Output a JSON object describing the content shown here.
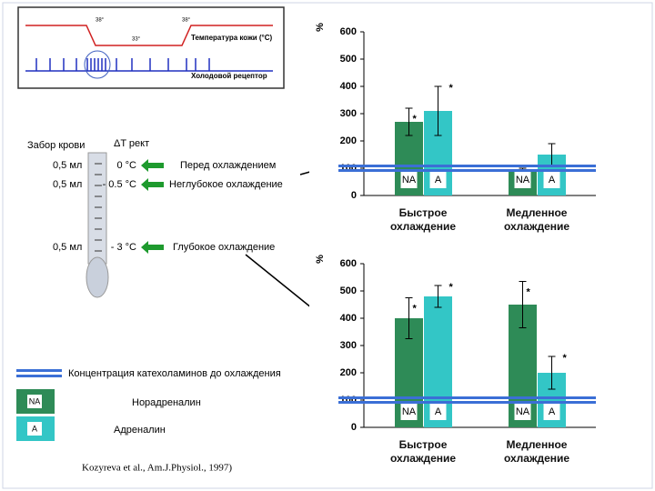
{
  "schematic": {
    "temp_label": "Температура кожи (°C)",
    "receptor_label": "Холодовой рецептор",
    "marks": [
      "38°",
      "33°",
      "38°"
    ]
  },
  "thermometer": {
    "blood_label": "Забор крови",
    "delta_label": "ΔT рект",
    "rows": [
      {
        "volume": "0,5 мл",
        "temp": "0 °C",
        "stage": "Перед охлаждением"
      },
      {
        "volume": "0,5 мл",
        "temp": "- 0.5 °C",
        "stage": "Неглубокое охлаждение"
      },
      {
        "volume": "0,5 мл",
        "temp": "- 3 °C",
        "stage": "Глубокое охлаждение"
      }
    ]
  },
  "legend": {
    "baseline": "Концентрация катехоламинов до охлаждения",
    "na_box": "NA",
    "na": "Норадреналин",
    "a_box": "A",
    "a": "Адреналин"
  },
  "citation": "Kozyreva et al., Am.J.Physiol., 1997)",
  "chart_data": [
    {
      "type": "bar",
      "y_label": "%",
      "categories": [
        "Быстрое охлаждение",
        "Медленное охлаждение"
      ],
      "series": [
        {
          "name": "NA",
          "color": "#2e8b57",
          "values": [
            270,
            90
          ],
          "errors": [
            50,
            10
          ],
          "annotations": [
            "*",
            null
          ]
        },
        {
          "name": "A",
          "color": "#33c6c6",
          "values": [
            310,
            150
          ],
          "errors": [
            90,
            40
          ],
          "annotations": [
            "*",
            null
          ]
        }
      ],
      "reference_line": 100,
      "reference_color": "#3b6fd6",
      "ylim": [
        0,
        600
      ],
      "yticks": [
        0,
        100,
        200,
        300,
        400,
        500,
        600
      ]
    },
    {
      "type": "bar",
      "y_label": "%",
      "categories": [
        "Быстрое охлаждение",
        "Медленное охлаждение"
      ],
      "series": [
        {
          "name": "NA",
          "color": "#2e8b57",
          "values": [
            400,
            450
          ],
          "errors": [
            75,
            85
          ],
          "annotations": [
            "*",
            "*"
          ]
        },
        {
          "name": "A",
          "color": "#33c6c6",
          "values": [
            480,
            200
          ],
          "errors": [
            40,
            60
          ],
          "annotations": [
            "*",
            "*"
          ]
        }
      ],
      "reference_line": 100,
      "reference_color": "#3b6fd6",
      "ylim": [
        0,
        600
      ],
      "yticks": [
        0,
        100,
        200,
        300,
        400,
        500,
        600
      ]
    }
  ]
}
